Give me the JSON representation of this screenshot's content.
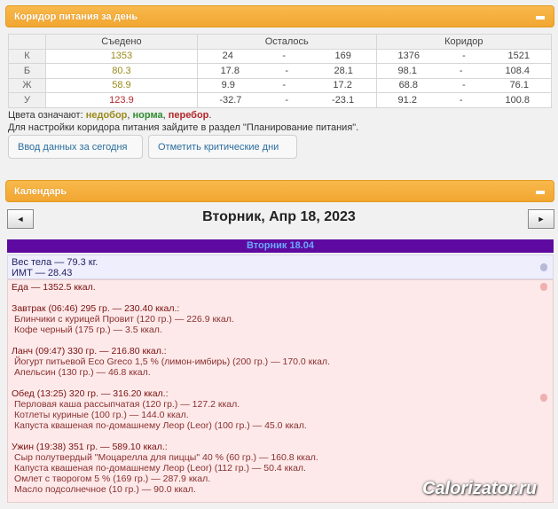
{
  "corridor": {
    "title": "Коридор питания за день",
    "headers": [
      "",
      "Съедено",
      "Осталось",
      "Коридор"
    ],
    "rows": [
      {
        "label": "К",
        "eaten": "1353",
        "status": "under",
        "left_min": "24",
        "left_max": "169",
        "c_min": "1376",
        "c_max": "1521"
      },
      {
        "label": "Б",
        "eaten": "80.3",
        "status": "under",
        "left_min": "17.8",
        "left_max": "28.1",
        "c_min": "98.1",
        "c_max": "108.4"
      },
      {
        "label": "Ж",
        "eaten": "58.9",
        "status": "under",
        "left_min": "9.9",
        "left_max": "17.2",
        "c_min": "68.8",
        "c_max": "76.1"
      },
      {
        "label": "У",
        "eaten": "123.9",
        "status": "over",
        "left_min": "-32.7",
        "left_max": "-23.1",
        "c_min": "91.2",
        "c_max": "100.8"
      }
    ],
    "dash": "-",
    "legend_prefix": "Цвета означают: ",
    "legend_under": "недобор",
    "legend_norm": "норма",
    "legend_over": "перебор",
    "note": "Для настройки коридора питания зайдите в раздел \"Планирование питания\".",
    "btn_enter": "Ввод данных за сегодня",
    "btn_critical": "Отметить критические дни"
  },
  "calendar": {
    "title": "Календарь",
    "prev": "◄",
    "next": "►",
    "date": "Вторник, Апр 18, 2023",
    "day_label": "Вторник 18.04",
    "weight": "Вес тела — 79.3 кг.",
    "bmi": "ИМТ — 28.43",
    "food_total": "Еда — 1352.5 ккал.",
    "meals": [
      {
        "title": "Завтрак (06:46) 295 гр. — 230.40 ккал.:",
        "items": [
          "Блинчики с курицей Провит (120 гр.) — 226.9 ккал.",
          "Кофе черный (175 гр.) — 3.5 ккал."
        ]
      },
      {
        "title": "Ланч (09:47) 330 гр. — 216.80 ккал.:",
        "items": [
          "Йогурт питьевой Eco Greco 1,5 % (лимон-имбирь) (200 гр.) — 170.0 ккал.",
          "Апельсин (130 гр.) — 46.8 ккал."
        ]
      },
      {
        "title": "Обед (13:25) 320 гр. — 316.20 ккал.:",
        "items": [
          "Перловая каша рассыпчатая (120 гр.) — 127.2 ккал.",
          "Котлеты куриные (100 гр.) — 144.0 ккал.",
          "Капуста квашеная по-домашнему Леор (Leor) (100 гр.) — 45.0 ккал."
        ]
      },
      {
        "title": "Ужин (19:38) 351 гр. — 589.10 ккал.:",
        "items": [
          "Сыр полутвердый \"Моцарелла для пиццы\" 40 % (60 гр.) — 160.8 ккал.",
          "Капуста квашеная по-домашнему Леор (Leor) (112 гр.) — 50.4 ккал.",
          "Омлет с творогом 5 % (169 гр.) — 287.9 ккал.",
          "Масло подсолнечное (10 гр.) — 90.0 ккал."
        ]
      }
    ]
  },
  "watermark": "Calorizator.ru"
}
